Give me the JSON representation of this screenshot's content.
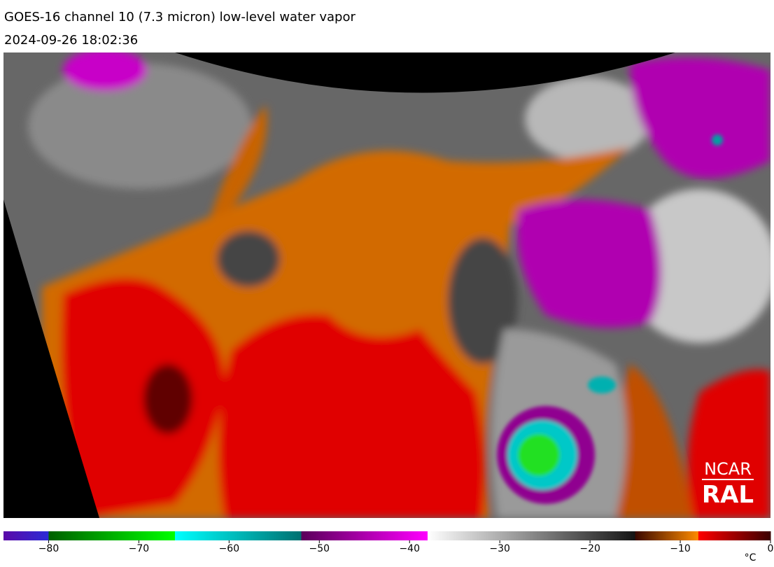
{
  "title": "GOES-16 channel 10 (7.3 micron) low-level water vapor",
  "timestamp": "2024-09-26 18:02:36",
  "logo": {
    "line1": "NCAR",
    "line2": "RAL"
  },
  "colorbar": {
    "lim": [
      -85,
      0
    ],
    "unit": "°C",
    "ticks": [
      {
        "value": -80,
        "label": "−80"
      },
      {
        "value": -70,
        "label": "−70"
      },
      {
        "value": -60,
        "label": "−60"
      },
      {
        "value": -50,
        "label": "−50"
      },
      {
        "value": -40,
        "label": "−40"
      },
      {
        "value": -30,
        "label": "−30"
      },
      {
        "value": -20,
        "label": "−20"
      },
      {
        "value": -10,
        "label": "−10"
      },
      0
    ],
    "segments": [
      {
        "from": -85,
        "to": -80,
        "colors": [
          "#5a0aa8",
          "#2b2bd6"
        ]
      },
      {
        "from": -80,
        "to": -66,
        "colors": [
          "#006000",
          "#00ff00"
        ]
      },
      {
        "from": -66,
        "to": -52,
        "colors": [
          "#00ffff",
          "#007070"
        ]
      },
      {
        "from": -52,
        "to": -38,
        "colors": [
          "#5a005a",
          "#ff00ff"
        ]
      },
      {
        "from": -38,
        "to": -15,
        "colors": [
          "#ffffff",
          "#141414"
        ]
      },
      {
        "from": -15,
        "to": -8,
        "colors": [
          "#3a0800",
          "#ff8c00"
        ]
      },
      {
        "from": -8,
        "to": 0,
        "colors": [
          "#ff0000",
          "#3a0000"
        ]
      }
    ]
  }
}
